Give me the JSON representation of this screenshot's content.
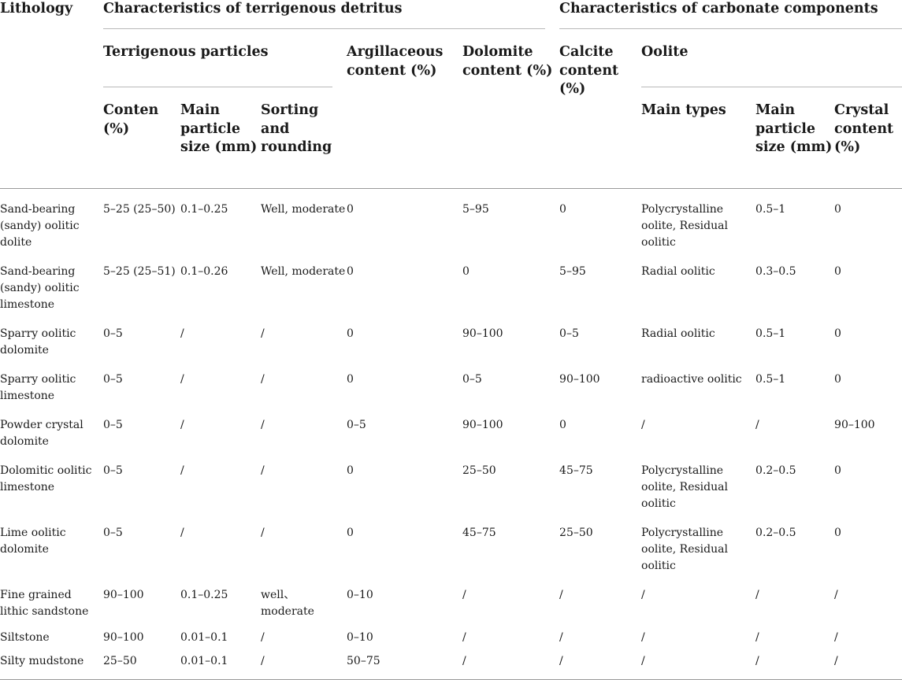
{
  "header": {
    "lithology": "Lithology",
    "terrigenous_group": "Characteristics of terrigenous detritus",
    "carbonate_group": "Characteristics of carbonate components",
    "terrigenous_particles": "Terrigenous particles",
    "argillaceous": "Argillaceous content (%)",
    "dolomite": "Dolomite content (%)",
    "calcite": "Calcite content (%)",
    "oolite": "Oolite",
    "conten": "Conten (%)",
    "main_particle_size_1": "Main particle size (mm)",
    "sorting": "Sorting and rounding",
    "main_types": "Main types",
    "main_particle_size_2": "Main particle size (mm)",
    "crystal": "Crystal content (%)"
  },
  "rows": [
    {
      "lithology": "Sand-bearing (sandy) oolitic dolite",
      "conten": "5–25 (25–50)",
      "size1": "0.1–0.25",
      "sorting": "Well, moderate",
      "argillaceous": "0",
      "dolomite": "5–95",
      "calcite": "0",
      "types": "Polycrystalline oolite, Residual oolitic",
      "size2": "0.5–1",
      "crystal": "0"
    },
    {
      "lithology": "Sand-bearing (sandy) oolitic limestone",
      "conten": "5–25 (25–51)",
      "size1": "0.1–0.26",
      "sorting": "Well, moderate",
      "argillaceous": "0",
      "dolomite": "0",
      "calcite": "5–95",
      "types": "Radial oolitic",
      "size2": "0.3–0.5",
      "crystal": "0"
    },
    {
      "lithology": "Sparry oolitic dolomite",
      "conten": "0–5",
      "size1": "/",
      "sorting": "/",
      "argillaceous": "0",
      "dolomite": "90–100",
      "calcite": "0–5",
      "types": "Radial oolitic",
      "size2": "0.5–1",
      "crystal": "0"
    },
    {
      "lithology": "Sparry oolitic limestone",
      "conten": "0–5",
      "size1": "/",
      "sorting": "/",
      "argillaceous": "0",
      "dolomite": "0–5",
      "calcite": "90–100",
      "types": "radioactive oolitic",
      "size2": "0.5–1",
      "crystal": "0"
    },
    {
      "lithology": "Powder crystal dolomite",
      "conten": "0–5",
      "size1": "/",
      "sorting": "/",
      "argillaceous": "0–5",
      "dolomite": "90–100",
      "calcite": "0",
      "types": "/",
      "size2": "/",
      "crystal": "90–100"
    },
    {
      "lithology": "Dolomitic oolitic limestone",
      "conten": "0–5",
      "size1": "/",
      "sorting": "/",
      "argillaceous": "0",
      "dolomite": "25–50",
      "calcite": "45–75",
      "types": "Polycrystalline oolite, Residual oolitic",
      "size2": "0.2–0.5",
      "crystal": "0"
    },
    {
      "lithology": "Lime oolitic dolomite",
      "conten": "0–5",
      "size1": "/",
      "sorting": "/",
      "argillaceous": "0",
      "dolomite": "45–75",
      "calcite": "25–50",
      "types": "Polycrystalline oolite, Residual oolitic",
      "size2": "0.2–0.5",
      "crystal": "0"
    },
    {
      "lithology": "Fine grained lithic sandstone",
      "conten": "90–100",
      "size1": "0.1–0.25",
      "sorting": "well、moderate",
      "argillaceous": "0–10",
      "dolomite": "/",
      "calcite": "/",
      "types": "/",
      "size2": "/",
      "crystal": "/"
    },
    {
      "lithology": "Siltstone",
      "conten": "90–100",
      "size1": "0.01–0.1",
      "sorting": "/",
      "argillaceous": "0–10",
      "dolomite": "/",
      "calcite": "/",
      "types": "/",
      "size2": "/",
      "crystal": "/"
    },
    {
      "lithology": "Silty mudstone",
      "conten": "25–50",
      "size1": "0.01–0.1",
      "sorting": "/",
      "argillaceous": "50–75",
      "dolomite": "/",
      "calcite": "/",
      "types": "/",
      "size2": "/",
      "crystal": "/"
    }
  ]
}
